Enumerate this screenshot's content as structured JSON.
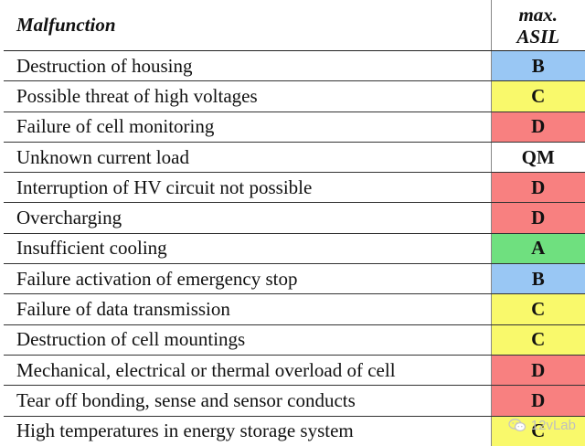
{
  "table": {
    "headers": {
      "malfunction": "Malfunction",
      "asil_line1": "max.",
      "asil_line2": "ASIL"
    },
    "rows": [
      {
        "malfunction": "Destruction of housing",
        "asil": "B",
        "color": "#99c7f4"
      },
      {
        "malfunction": "Possible threat of high voltages",
        "asil": "C",
        "color": "#f9f96b"
      },
      {
        "malfunction": "Failure of cell monitoring",
        "asil": "D",
        "color": "#f88080"
      },
      {
        "malfunction": "Unknown current load",
        "asil": "QM",
        "color": "#ffffff"
      },
      {
        "malfunction": "Interruption of HV circuit not possible",
        "asil": "D",
        "color": "#f88080"
      },
      {
        "malfunction": "Overcharging",
        "asil": "D",
        "color": "#f88080"
      },
      {
        "malfunction": "Insufficient cooling",
        "asil": "A",
        "color": "#6fe07f"
      },
      {
        "malfunction": "Failure activation of emergency stop",
        "asil": "B",
        "color": "#99c7f4"
      },
      {
        "malfunction": "Failure of data transmission",
        "asil": "C",
        "color": "#f9f96b"
      },
      {
        "malfunction": "Destruction of cell mountings",
        "asil": "C",
        "color": "#f9f96b"
      },
      {
        "malfunction": "Mechanical, electrical or thermal overload of cell",
        "asil": "D",
        "color": "#f88080"
      },
      {
        "malfunction": "Tear off bonding, sense and sensor conducts",
        "asil": "D",
        "color": "#f88080"
      },
      {
        "malfunction": "High temperatures in energy storage system",
        "asil": "C",
        "color": "#f9f96b"
      }
    ]
  },
  "watermark": {
    "text": "12vLab",
    "icon": "wechat-icon"
  }
}
